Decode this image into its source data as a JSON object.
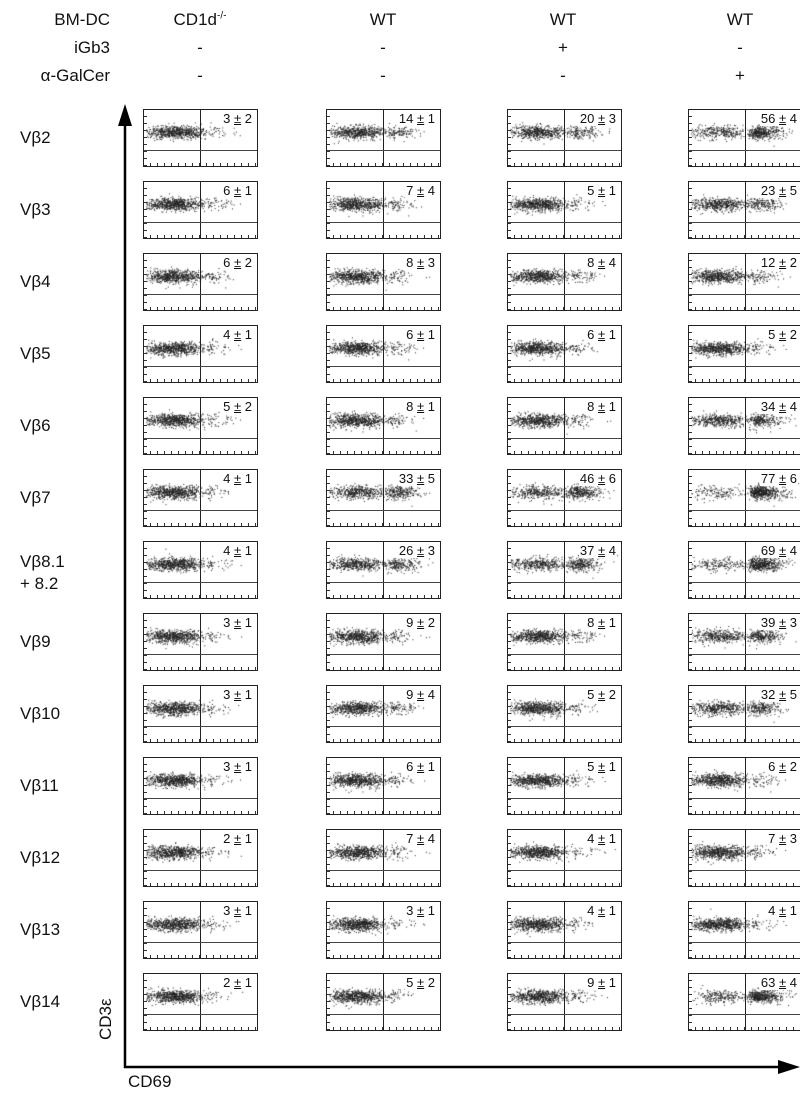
{
  "conditions": {
    "row_labels": [
      "BM-DC",
      "iGb3",
      "α-GalCer"
    ],
    "columns": [
      {
        "bm_dc": "CD1d",
        "bm_dc_sup": "-/-",
        "igb3": "-",
        "agalcer": "-"
      },
      {
        "bm_dc": "WT",
        "bm_dc_sup": "",
        "igb3": "-",
        "agalcer": "-"
      },
      {
        "bm_dc": "WT",
        "bm_dc_sup": "",
        "igb3": "+",
        "agalcer": "-"
      },
      {
        "bm_dc": "WT",
        "bm_dc_sup": "",
        "igb3": "-",
        "agalcer": "+"
      }
    ]
  },
  "axis": {
    "y_label": "CD3ε",
    "x_label": "CD69"
  },
  "rows": [
    {
      "label": "Vβ2",
      "label2": "",
      "values": [
        [
          "3",
          "2"
        ],
        [
          "14",
          "1"
        ],
        [
          "20",
          "3"
        ],
        [
          "56",
          "4"
        ]
      ]
    },
    {
      "label": "Vβ3",
      "label2": "",
      "values": [
        [
          "6",
          "1"
        ],
        [
          "7",
          "4"
        ],
        [
          "5",
          "1"
        ],
        [
          "23",
          "5"
        ]
      ]
    },
    {
      "label": "Vβ4",
      "label2": "",
      "values": [
        [
          "6",
          "2"
        ],
        [
          "8",
          "3"
        ],
        [
          "8",
          "4"
        ],
        [
          "12",
          "2"
        ]
      ]
    },
    {
      "label": "Vβ5",
      "label2": "",
      "values": [
        [
          "4",
          "1"
        ],
        [
          "6",
          "1"
        ],
        [
          "6",
          "1"
        ],
        [
          "5",
          "2"
        ]
      ]
    },
    {
      "label": "Vβ6",
      "label2": "",
      "values": [
        [
          "5",
          "2"
        ],
        [
          "8",
          "1"
        ],
        [
          "8",
          "1"
        ],
        [
          "34",
          "4"
        ]
      ]
    },
    {
      "label": "Vβ7",
      "label2": "",
      "values": [
        [
          "4",
          "1"
        ],
        [
          "33",
          "5"
        ],
        [
          "46",
          "6"
        ],
        [
          "77",
          "6"
        ]
      ]
    },
    {
      "label": "Vβ8.1",
      "label2": "+ 8.2",
      "values": [
        [
          "4",
          "1"
        ],
        [
          "26",
          "3"
        ],
        [
          "37",
          "4"
        ],
        [
          "69",
          "4"
        ]
      ]
    },
    {
      "label": "Vβ9",
      "label2": "",
      "values": [
        [
          "3",
          "1"
        ],
        [
          "9",
          "2"
        ],
        [
          "8",
          "1"
        ],
        [
          "39",
          "3"
        ]
      ]
    },
    {
      "label": "Vβ10",
      "label2": "",
      "values": [
        [
          "3",
          "1"
        ],
        [
          "9",
          "4"
        ],
        [
          "5",
          "2"
        ],
        [
          "32",
          "5"
        ]
      ]
    },
    {
      "label": "Vβ11",
      "label2": "",
      "values": [
        [
          "3",
          "1"
        ],
        [
          "6",
          "1"
        ],
        [
          "5",
          "1"
        ],
        [
          "6",
          "2"
        ]
      ]
    },
    {
      "label": "Vβ12",
      "label2": "",
      "values": [
        [
          "2",
          "1"
        ],
        [
          "7",
          "4"
        ],
        [
          "4",
          "1"
        ],
        [
          "7",
          "3"
        ]
      ]
    },
    {
      "label": "Vβ13",
      "label2": "",
      "values": [
        [
          "3",
          "1"
        ],
        [
          "3",
          "1"
        ],
        [
          "4",
          "1"
        ],
        [
          "4",
          "1"
        ]
      ]
    },
    {
      "label": "Vβ14",
      "label2": "",
      "values": [
        [
          "2",
          "1"
        ],
        [
          "5",
          "2"
        ],
        [
          "9",
          "1"
        ],
        [
          "63",
          "4"
        ]
      ]
    }
  ],
  "pm_symbol": "±"
}
